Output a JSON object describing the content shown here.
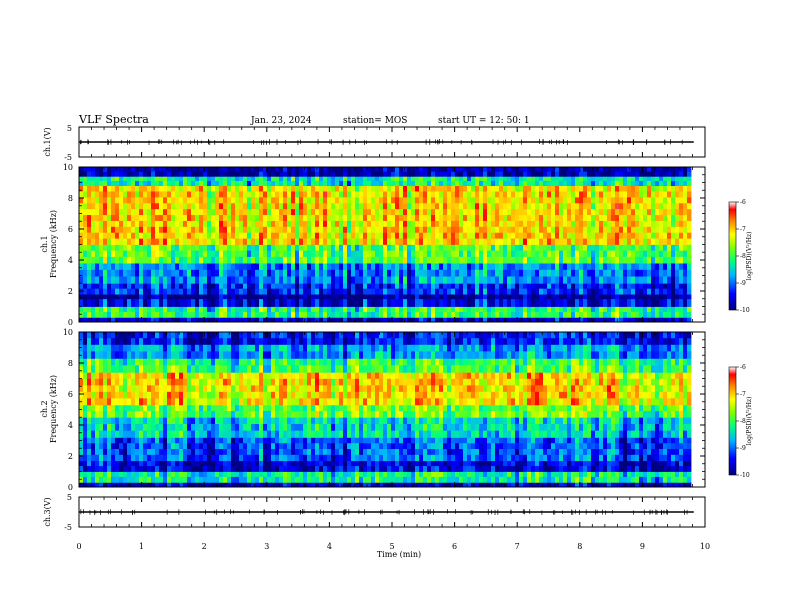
{
  "header": {
    "title": "VLF Spectra",
    "date": "Jan. 23, 2024",
    "station": "station= MOS",
    "start": "start  UT =   12: 50: 1"
  },
  "chart_data": [
    {
      "type": "line",
      "name_label": "ch.1(V)",
      "ylabel": "ch.1(V)",
      "ylim": [
        -5,
        5
      ],
      "yticks": [
        "5",
        "-5"
      ],
      "baseline_value": 0
    },
    {
      "type": "heatmap",
      "ylabel_top": "ch.1",
      "ylabel": "Frequency (kHz)",
      "ylim": [
        0,
        10
      ],
      "yticks": [
        "0",
        "2",
        "4",
        "6",
        "8",
        "10"
      ],
      "colorbar": {
        "label": "log(PSD)(V²/Hz)",
        "range": [
          -10,
          -6
        ],
        "ticks": [
          "-6",
          "-7",
          "-8",
          "-9",
          "-10"
        ]
      },
      "bands": [
        {
          "from": 0.0,
          "to": 0.3,
          "level": -9.6
        },
        {
          "from": 0.3,
          "to": 1.0,
          "level": -8.0
        },
        {
          "from": 1.0,
          "to": 1.5,
          "level": -9.4
        },
        {
          "from": 1.5,
          "to": 1.8,
          "level": -9.9
        },
        {
          "from": 1.8,
          "to": 2.5,
          "level": -9.2
        },
        {
          "from": 2.5,
          "to": 3.8,
          "level": -8.8
        },
        {
          "from": 3.8,
          "to": 5.0,
          "level": -7.8
        },
        {
          "from": 5.0,
          "to": 8.8,
          "level": -7.0
        },
        {
          "from": 8.8,
          "to": 9.4,
          "level": -8.2
        },
        {
          "from": 9.4,
          "to": 10.0,
          "level": -9.7
        }
      ]
    },
    {
      "type": "heatmap",
      "ylabel_top": "ch.2",
      "ylabel": "Frequency (kHz)",
      "ylim": [
        0,
        10
      ],
      "yticks": [
        "0",
        "2",
        "4",
        "6",
        "8",
        "10"
      ],
      "colorbar": {
        "label": "log(PSD)(V²/Hz)",
        "range": [
          -10,
          -6
        ],
        "ticks": [
          "-6",
          "-7",
          "-8",
          "-9",
          "-10"
        ]
      },
      "bands": [
        {
          "from": 0.0,
          "to": 0.3,
          "level": -9.6
        },
        {
          "from": 0.3,
          "to": 1.0,
          "level": -8.2
        },
        {
          "from": 1.0,
          "to": 1.7,
          "level": -9.5
        },
        {
          "from": 1.7,
          "to": 3.2,
          "level": -9.0
        },
        {
          "from": 3.2,
          "to": 4.5,
          "level": -8.4
        },
        {
          "from": 4.5,
          "to": 5.3,
          "level": -7.7
        },
        {
          "from": 5.3,
          "to": 7.4,
          "level": -7.0
        },
        {
          "from": 7.4,
          "to": 8.3,
          "level": -7.9
        },
        {
          "from": 8.3,
          "to": 9.2,
          "level": -8.7
        },
        {
          "from": 9.2,
          "to": 10.0,
          "level": -9.3
        }
      ]
    },
    {
      "type": "line",
      "ylabel": "ch.3(V)",
      "ylim": [
        -5,
        5
      ],
      "yticks": [
        "5",
        "-5"
      ],
      "baseline_value": 0
    }
  ],
  "xaxis": {
    "label": "Time (min)",
    "xlim": [
      0,
      10
    ],
    "ticks": [
      "0",
      "1",
      "2",
      "3",
      "4",
      "5",
      "6",
      "7",
      "8",
      "9",
      "10"
    ],
    "data_end": 9.82
  }
}
